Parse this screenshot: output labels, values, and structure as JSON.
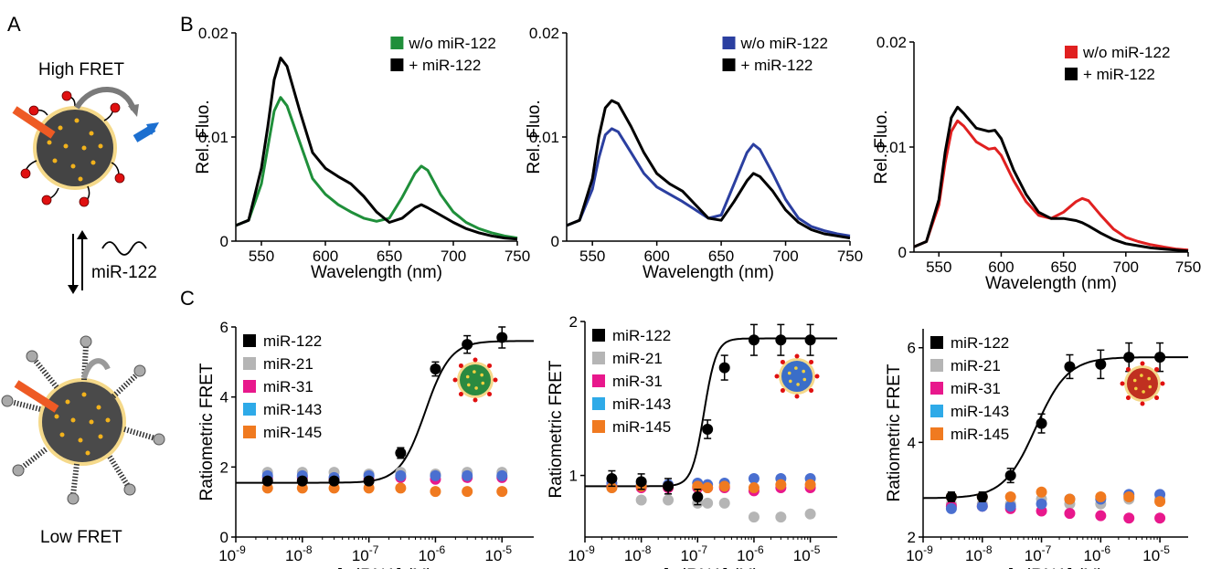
{
  "panel_labels": [
    "A",
    "B",
    "C"
  ],
  "schematic": {
    "high_label": "High FRET",
    "low_label": "Low FRET",
    "mirna_label": "miR-122"
  },
  "chart_data": [
    {
      "type": "line",
      "panel": "B",
      "xlabel": "Wavelength (nm)",
      "ylabel": "Rel. Fluo.",
      "xlim": [
        530,
        750
      ],
      "ylim": [
        0,
        0.02
      ],
      "xticks": [
        550,
        600,
        650,
        700,
        750
      ],
      "yticks": [
        0,
        0.01,
        0.02
      ],
      "ytick_labels": [
        "0",
        "0.01",
        "0.02"
      ],
      "legend_placement": "top-right",
      "series": [
        {
          "name": "w/o miR-122",
          "color": "#1f8f3a",
          "x": [
            530,
            540,
            550,
            555,
            560,
            565,
            570,
            580,
            590,
            600,
            610,
            620,
            630,
            640,
            650,
            660,
            670,
            675,
            680,
            690,
            700,
            710,
            720,
            730,
            740,
            750
          ],
          "y": [
            0.0015,
            0.002,
            0.0055,
            0.009,
            0.0125,
            0.0138,
            0.013,
            0.0095,
            0.006,
            0.0045,
            0.0035,
            0.0028,
            0.0022,
            0.0019,
            0.0022,
            0.0042,
            0.0065,
            0.0072,
            0.0068,
            0.0045,
            0.0028,
            0.0018,
            0.0012,
            0.0008,
            0.0005,
            0.0003
          ]
        },
        {
          "name": "+ miR-122",
          "color": "#000000",
          "x": [
            530,
            540,
            550,
            555,
            560,
            565,
            570,
            580,
            590,
            600,
            610,
            620,
            630,
            640,
            650,
            660,
            670,
            675,
            680,
            690,
            700,
            710,
            720,
            730,
            740,
            750
          ],
          "y": [
            0.0015,
            0.002,
            0.007,
            0.011,
            0.0155,
            0.0176,
            0.0168,
            0.0125,
            0.0085,
            0.007,
            0.0062,
            0.0055,
            0.0043,
            0.0028,
            0.0018,
            0.0022,
            0.0032,
            0.0035,
            0.0032,
            0.0025,
            0.0018,
            0.0012,
            0.0008,
            0.0005,
            0.0003,
            0.0002
          ]
        }
      ]
    },
    {
      "type": "line",
      "panel": "B",
      "xlabel": "Wavelength (nm)",
      "ylabel": "Rel. Fluo.",
      "xlim": [
        530,
        750
      ],
      "ylim": [
        0,
        0.02
      ],
      "xticks": [
        550,
        600,
        650,
        700,
        750
      ],
      "yticks": [
        0,
        0.01,
        0.02
      ],
      "ytick_labels": [
        "0",
        "0.01",
        "0.02"
      ],
      "legend_placement": "top-right",
      "series": [
        {
          "name": "w/o miR-122",
          "color": "#2b3fa0",
          "x": [
            530,
            540,
            550,
            555,
            560,
            565,
            570,
            580,
            590,
            600,
            610,
            620,
            630,
            640,
            650,
            660,
            670,
            675,
            680,
            690,
            700,
            710,
            720,
            730,
            740,
            750
          ],
          "y": [
            0.0015,
            0.002,
            0.005,
            0.008,
            0.0102,
            0.0108,
            0.0105,
            0.0085,
            0.0065,
            0.0052,
            0.0045,
            0.0038,
            0.003,
            0.0022,
            0.0025,
            0.0055,
            0.0085,
            0.0093,
            0.0088,
            0.0065,
            0.004,
            0.0022,
            0.0014,
            0.001,
            0.0007,
            0.0005
          ]
        },
        {
          "name": "+ miR-122",
          "color": "#000000",
          "x": [
            530,
            540,
            550,
            555,
            560,
            565,
            570,
            580,
            590,
            600,
            610,
            620,
            630,
            640,
            650,
            660,
            670,
            675,
            680,
            690,
            700,
            710,
            720,
            730,
            740,
            750
          ],
          "y": [
            0.0015,
            0.002,
            0.006,
            0.01,
            0.0128,
            0.0135,
            0.0132,
            0.011,
            0.0085,
            0.0065,
            0.0055,
            0.0048,
            0.0035,
            0.0022,
            0.002,
            0.0038,
            0.0058,
            0.0065,
            0.0062,
            0.0048,
            0.003,
            0.0018,
            0.0011,
            0.0007,
            0.0005,
            0.0003
          ]
        }
      ]
    },
    {
      "type": "line",
      "panel": "B",
      "xlabel": "Wavelength (nm)",
      "ylabel": "Rel. Fluo.",
      "xlim": [
        530,
        750
      ],
      "ylim": [
        0,
        0.02
      ],
      "xticks": [
        550,
        600,
        650,
        700,
        750
      ],
      "yticks": [
        0,
        0.01,
        0.02
      ],
      "ytick_labels": [
        "0",
        "0.01",
        "0.02"
      ],
      "legend_placement": "top-right",
      "series": [
        {
          "name": "w/o miR-122",
          "color": "#e02020",
          "x": [
            530,
            540,
            550,
            555,
            560,
            565,
            570,
            580,
            590,
            595,
            600,
            610,
            620,
            630,
            640,
            650,
            660,
            665,
            670,
            680,
            690,
            700,
            710,
            720,
            730,
            740,
            750
          ],
          "y": [
            0.0005,
            0.001,
            0.0045,
            0.0085,
            0.0115,
            0.0125,
            0.012,
            0.0105,
            0.0098,
            0.0099,
            0.0092,
            0.0068,
            0.0048,
            0.0035,
            0.0032,
            0.0038,
            0.0048,
            0.0051,
            0.0049,
            0.0035,
            0.0022,
            0.0014,
            0.001,
            0.0007,
            0.0005,
            0.0003,
            0.0002
          ]
        },
        {
          "name": "+ miR-122",
          "color": "#000000",
          "x": [
            530,
            540,
            550,
            555,
            560,
            565,
            570,
            580,
            590,
            595,
            600,
            610,
            620,
            630,
            640,
            650,
            660,
            665,
            670,
            680,
            690,
            700,
            710,
            720,
            730,
            740,
            750
          ],
          "y": [
            0.0005,
            0.001,
            0.005,
            0.0095,
            0.0128,
            0.0138,
            0.0132,
            0.0118,
            0.0115,
            0.0116,
            0.0108,
            0.0078,
            0.0055,
            0.0038,
            0.0032,
            0.0032,
            0.003,
            0.0028,
            0.0025,
            0.0018,
            0.0012,
            0.0008,
            0.0006,
            0.0004,
            0.0003,
            0.0002,
            0.0001
          ]
        }
      ]
    },
    {
      "type": "scatter",
      "panel": "C",
      "xlabel": "[miRNA] (M)",
      "ylabel": "Ratiometric FRET",
      "xscale": "log",
      "xlim": [
        1e-09,
        3e-05
      ],
      "ylim": [
        0,
        6
      ],
      "yticks": [
        0,
        2,
        4,
        6
      ],
      "ytick_labels": [
        "0",
        "2",
        "4",
        "6"
      ],
      "fit": {
        "bottom": 1.55,
        "top": 5.6,
        "ec50": 7e-07,
        "hill": 2.3
      },
      "legend_placement": "top-left",
      "series": [
        {
          "name": "miR-122",
          "color": "#000000",
          "x": [
            3e-09,
            1e-08,
            3e-08,
            1e-07,
            3e-07,
            1e-06,
            3e-06,
            1e-05
          ],
          "y": [
            1.6,
            1.6,
            1.6,
            1.6,
            2.4,
            4.8,
            5.5,
            5.7
          ],
          "err": [
            0.1,
            0.1,
            0.1,
            0.1,
            0.15,
            0.2,
            0.25,
            0.3
          ]
        },
        {
          "name": "miR-21",
          "color": "#b5b5b5",
          "x": [
            3e-09,
            1e-08,
            3e-08,
            1e-07,
            3e-07,
            1e-06,
            3e-06,
            1e-05
          ],
          "y": [
            1.85,
            1.85,
            1.85,
            1.8,
            1.85,
            1.8,
            1.85,
            1.85
          ]
        },
        {
          "name": "miR-31",
          "color": "#e8188c",
          "x": [
            3e-09,
            1e-08,
            3e-08,
            1e-07,
            3e-07,
            1e-06,
            3e-06,
            1e-05
          ],
          "y": [
            1.7,
            1.7,
            1.65,
            1.65,
            1.7,
            1.65,
            1.7,
            1.7
          ]
        },
        {
          "name": "miR-143",
          "color": "#4a6fd0",
          "x": [
            3e-09,
            1e-08,
            3e-08,
            1e-07,
            3e-07,
            1e-06,
            3e-06,
            1e-05
          ],
          "y": [
            1.75,
            1.75,
            1.7,
            1.75,
            1.75,
            1.75,
            1.75,
            1.75
          ]
        },
        {
          "name": "miR-145",
          "color": "#f07a20",
          "x": [
            3e-09,
            1e-08,
            3e-08,
            1e-07,
            3e-07,
            1e-06,
            3e-06,
            1e-05
          ],
          "y": [
            1.4,
            1.4,
            1.4,
            1.4,
            1.4,
            1.3,
            1.3,
            1.3
          ]
        }
      ],
      "legend_colors": [
        "#000000",
        "#b5b5b5",
        "#e8188c",
        "#2eaae8",
        "#f07a20"
      ]
    },
    {
      "type": "scatter",
      "panel": "C",
      "xlabel": "[miRNA] (M)",
      "ylabel": "Ratiometric FRET",
      "xscale": "log",
      "xlim": [
        1e-09,
        3e-05
      ],
      "ylim": [
        0.6,
        2.0
      ],
      "yticks": [
        1,
        2
      ],
      "ytick_labels": [
        "1",
        "2"
      ],
      "fit": {
        "bottom": 0.93,
        "top": 1.89,
        "ec50": 1.3e-07,
        "hill": 4
      },
      "legend_placement": "top-left",
      "series": [
        {
          "name": "miR-122",
          "color": "#000000",
          "x": [
            3e-09,
            1e-08,
            3e-08,
            1e-07,
            1.5e-07,
            3e-07,
            1e-06,
            3e-06,
            1e-05
          ],
          "y": [
            0.98,
            0.96,
            0.93,
            0.86,
            1.3,
            1.7,
            1.88,
            1.88,
            1.88
          ],
          "err": [
            0.05,
            0.05,
            0.05,
            0.05,
            0.06,
            0.08,
            0.1,
            0.1,
            0.1
          ]
        },
        {
          "name": "miR-21",
          "color": "#b5b5b5",
          "x": [
            3e-09,
            1e-08,
            3e-08,
            1e-07,
            1.5e-07,
            3e-07,
            1e-06,
            3e-06,
            1e-05
          ],
          "y": [
            0.92,
            0.84,
            0.84,
            0.82,
            0.82,
            0.82,
            0.73,
            0.73,
            0.75
          ]
        },
        {
          "name": "miR-31",
          "color": "#e8188c",
          "x": [
            3e-09,
            1e-08,
            3e-08,
            1e-07,
            1.5e-07,
            3e-07,
            1e-06,
            3e-06,
            1e-05
          ],
          "y": [
            0.93,
            0.92,
            0.92,
            0.92,
            0.92,
            0.92,
            0.9,
            0.92,
            0.92
          ]
        },
        {
          "name": "miR-143",
          "color": "#4a6fd0",
          "x": [
            3e-09,
            1e-08,
            3e-08,
            1e-07,
            1.5e-07,
            3e-07,
            1e-06,
            3e-06,
            1e-05
          ],
          "y": [
            0.95,
            0.94,
            0.94,
            0.95,
            0.94,
            0.95,
            0.98,
            0.98,
            0.98
          ]
        },
        {
          "name": "miR-145",
          "color": "#f07a20",
          "x": [
            3e-09,
            1e-08,
            3e-08,
            1e-07,
            1.5e-07,
            3e-07,
            1e-06,
            3e-06,
            1e-05
          ],
          "y": [
            0.92,
            0.93,
            0.93,
            0.93,
            0.92,
            0.93,
            0.92,
            0.94,
            0.94
          ]
        }
      ],
      "legend_colors": [
        "#000000",
        "#b5b5b5",
        "#e8188c",
        "#2eaae8",
        "#f07a20"
      ]
    },
    {
      "type": "scatter",
      "panel": "C",
      "xlabel": "[miRNA] (M)",
      "ylabel": "Ratiometric FRET",
      "xscale": "log",
      "xlim": [
        1e-09,
        3e-05
      ],
      "ylim": [
        2,
        6.4
      ],
      "yticks": [
        2,
        4,
        6
      ],
      "ytick_labels": [
        "2",
        "4",
        "6"
      ],
      "fit": {
        "bottom": 2.82,
        "top": 5.8,
        "ec50": 8e-08,
        "hill": 1.6
      },
      "legend_placement": "top-left",
      "series": [
        {
          "name": "miR-122",
          "color": "#000000",
          "x": [
            3e-09,
            1e-08,
            3e-08,
            1e-07,
            3e-07,
            1e-06,
            3e-06,
            1e-05
          ],
          "y": [
            2.85,
            2.85,
            3.3,
            4.4,
            5.6,
            5.65,
            5.8,
            5.8
          ],
          "err": [
            0.1,
            0.1,
            0.15,
            0.2,
            0.25,
            0.3,
            0.3,
            0.3
          ]
        },
        {
          "name": "miR-21",
          "color": "#b5b5b5",
          "x": [
            3e-09,
            1e-08,
            3e-08,
            1e-07,
            3e-07,
            1e-06,
            3e-06,
            1e-05
          ],
          "y": [
            2.7,
            2.7,
            2.7,
            2.8,
            2.7,
            2.7,
            2.8,
            2.8
          ]
        },
        {
          "name": "miR-31",
          "color": "#e8188c",
          "x": [
            3e-09,
            1e-08,
            3e-08,
            1e-07,
            3e-07,
            1e-06,
            3e-06,
            1e-05
          ],
          "y": [
            2.65,
            2.65,
            2.6,
            2.55,
            2.5,
            2.45,
            2.4,
            2.4
          ]
        },
        {
          "name": "miR-143",
          "color": "#4a6fd0",
          "x": [
            3e-09,
            1e-08,
            3e-08,
            1e-07,
            3e-07,
            1e-06,
            3e-06,
            1e-05
          ],
          "y": [
            2.6,
            2.65,
            2.65,
            2.7,
            2.8,
            2.8,
            2.9,
            2.9
          ]
        },
        {
          "name": "miR-145",
          "color": "#f07a20",
          "x": [
            3e-09,
            1e-08,
            3e-08,
            1e-07,
            3e-07,
            1e-06,
            3e-06,
            1e-05
          ],
          "y": [
            2.85,
            2.85,
            2.85,
            2.95,
            2.8,
            2.85,
            2.85,
            2.75
          ]
        }
      ],
      "legend_colors": [
        "#000000",
        "#b5b5b5",
        "#e8188c",
        "#2eaae8",
        "#f07a20"
      ]
    }
  ],
  "nanoparticle_colors": [
    "#2a8a40",
    "#3a6ec8",
    "#c03020"
  ]
}
